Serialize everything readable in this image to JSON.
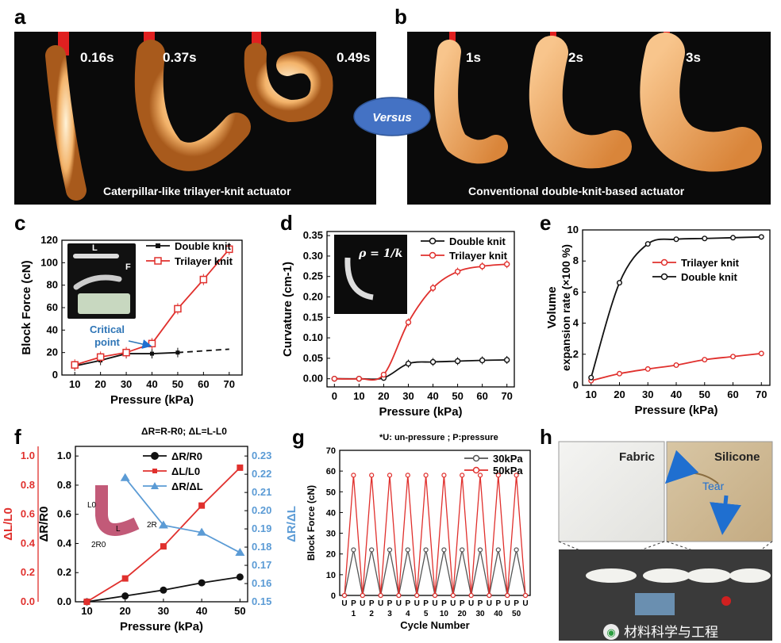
{
  "panels": {
    "a": "a",
    "b": "b",
    "c": "c",
    "d": "d",
    "e": "e",
    "f": "f",
    "g": "g",
    "h": "h"
  },
  "photos": {
    "a_times": [
      "0.16s",
      "0.37s",
      "0.49s"
    ],
    "a_caption": "Caterpillar-like trilayer-knit actuator",
    "b_times": [
      "1s",
      "2s",
      "3s"
    ],
    "b_caption": "Conventional double-knit-based actuator",
    "versus": "Versus",
    "h_fabric": "Fabric",
    "h_silicone": "Silicone",
    "h_tear": "Tear",
    "watermark": "材料科学与工程"
  },
  "colors": {
    "red": "#e0302d",
    "black": "#111111",
    "blue": "#5b9bd5",
    "gray": "#555555",
    "oval": "#4472c4"
  },
  "chart_data": [
    {
      "id": "c",
      "type": "line",
      "xlabel": "Pressure (kPa)",
      "ylabel": "Block Force (cN)",
      "x": [
        10,
        20,
        30,
        40,
        50,
        60,
        70
      ],
      "xlim": [
        5,
        75
      ],
      "ylim": [
        0,
        120
      ],
      "xticks": [
        "10",
        "20",
        "30",
        "40",
        "50",
        "60",
        "70"
      ],
      "yticks": [
        "0",
        "20",
        "40",
        "60",
        "80",
        "100",
        "120"
      ],
      "inset_labels": [
        "L",
        "F"
      ],
      "annotation": "Critical point",
      "annotation_lines": [
        "Critical",
        "point"
      ],
      "series": [
        {
          "name": "Double knit",
          "x": [
            10,
            20,
            30,
            40,
            50
          ],
          "values": [
            8,
            13,
            19,
            19,
            20
          ],
          "dashed_to": [
            70,
            23
          ]
        },
        {
          "name": "Trilayer knit",
          "x": [
            10,
            20,
            30,
            40,
            50,
            60,
            70
          ],
          "values": [
            9,
            16,
            20,
            28,
            59,
            85,
            112
          ]
        }
      ]
    },
    {
      "id": "d",
      "type": "line",
      "xlabel": "Pressure (kPa)",
      "ylabel": "Curvature (cm-1)",
      "x": [
        0,
        10,
        20,
        30,
        40,
        50,
        60,
        70
      ],
      "xlim": [
        -3,
        73
      ],
      "ylim": [
        -0.02,
        0.36
      ],
      "xticks": [
        "0",
        "10",
        "20",
        "30",
        "40",
        "50",
        "60",
        "70"
      ],
      "yticks": [
        "0.00",
        "0.05",
        "0.10",
        "0.15",
        "0.20",
        "0.25",
        "0.30",
        "0.35"
      ],
      "inset_formula": "ρ = 1/k",
      "series": [
        {
          "name": "Double knit",
          "values": [
            0,
            0,
            0.002,
            0.037,
            0.041,
            0.043,
            0.045,
            0.046
          ]
        },
        {
          "name": "Trilayer knit",
          "values": [
            0,
            0,
            0.01,
            0.138,
            0.222,
            0.262,
            0.275,
            0.28
          ]
        }
      ]
    },
    {
      "id": "e",
      "type": "line",
      "xlabel": "Pressure (kPa)",
      "ylabel": "Volume expansion rate (×100 %)",
      "ylabel_lines": [
        "Volume",
        "expansion rate (×100 %)"
      ],
      "x": [
        10,
        20,
        30,
        40,
        50,
        60,
        70
      ],
      "xlim": [
        7,
        73
      ],
      "ylim": [
        0,
        10
      ],
      "xticks": [
        "10",
        "20",
        "30",
        "40",
        "50",
        "60",
        "70"
      ],
      "yticks": [
        "0",
        "2",
        "4",
        "6",
        "8",
        "10"
      ],
      "series": [
        {
          "name": "Trilayer knit",
          "values": [
            0.3,
            0.75,
            1.05,
            1.3,
            1.65,
            1.85,
            2.05
          ]
        },
        {
          "name": "Double knit",
          "values": [
            0.5,
            6.6,
            9.1,
            9.4,
            9.45,
            9.5,
            9.55
          ]
        }
      ]
    },
    {
      "id": "f",
      "type": "line",
      "title": "ΔR=R-R0; ΔL=L-L0",
      "xlabel": "Pressure (kPa)",
      "ylabel_left": "ΔL/L0",
      "ylabel_mid": "ΔR/R0",
      "ylabel_right": "ΔR/ΔL",
      "x": [
        10,
        20,
        30,
        40,
        50
      ],
      "xlim": [
        7,
        52
      ],
      "ylim_left": [
        0,
        1.0
      ],
      "ylim_right": [
        0.15,
        0.23
      ],
      "xticks": [
        "10",
        "20",
        "30",
        "40",
        "50"
      ],
      "yticks_left": [
        "0.0",
        "0.2",
        "0.4",
        "0.6",
        "0.8",
        "1.0"
      ],
      "yticks_mid": [
        "0.0",
        "0.2",
        "0.4",
        "0.6",
        "0.8",
        "1.0"
      ],
      "yticks_right": [
        "0.15",
        "0.16",
        "0.17",
        "0.18",
        "0.19",
        "0.20",
        "0.21",
        "0.22",
        "0.23"
      ],
      "inset_labels": [
        "L0",
        "L",
        "2R",
        "2R0"
      ],
      "series": [
        {
          "name": "ΔR/R0",
          "axis": "left",
          "values": [
            0,
            0.04,
            0.08,
            0.13,
            0.17
          ]
        },
        {
          "name": "ΔL/L0",
          "axis": "left",
          "values": [
            0,
            0.16,
            0.38,
            0.66,
            0.92
          ]
        },
        {
          "name": "ΔR/ΔL",
          "axis": "right",
          "x": [
            20,
            30,
            40,
            50
          ],
          "values": [
            0.218,
            0.192,
            0.188,
            0.177
          ]
        }
      ]
    },
    {
      "id": "g",
      "type": "line",
      "title": "*U: un-pressure ; P:pressure",
      "xlabel": "Cycle Number",
      "ylabel": "Block Force (cN)",
      "ylim": [
        0,
        70
      ],
      "yticks": [
        "0",
        "10",
        "20",
        "30",
        "40",
        "50",
        "60",
        "70"
      ],
      "cycle_labels": [
        "1",
        "2",
        "3",
        "4",
        "5",
        "10",
        "20",
        "30",
        "40",
        "50"
      ],
      "series": [
        {
          "name": "30kPa",
          "peak": 22,
          "base": 0
        },
        {
          "name": "50kPa",
          "peak": 58,
          "base": 0
        }
      ]
    }
  ]
}
